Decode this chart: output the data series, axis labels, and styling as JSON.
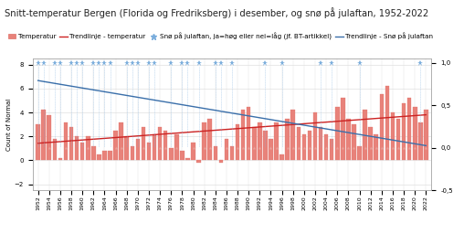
{
  "title": "Snitt-temperatur Bergen (Florida og Fredriksberg) i desember, og snø på julaftan, 1952-2022",
  "ylabel_left": "Count of Normal",
  "years": [
    1952,
    1953,
    1954,
    1955,
    1956,
    1957,
    1958,
    1959,
    1960,
    1961,
    1962,
    1963,
    1964,
    1965,
    1966,
    1967,
    1968,
    1969,
    1970,
    1971,
    1972,
    1973,
    1974,
    1975,
    1976,
    1977,
    1978,
    1979,
    1980,
    1981,
    1982,
    1983,
    1984,
    1985,
    1986,
    1987,
    1988,
    1989,
    1990,
    1991,
    1992,
    1993,
    1994,
    1995,
    1996,
    1997,
    1998,
    1999,
    2000,
    2001,
    2002,
    2003,
    2004,
    2005,
    2006,
    2007,
    2008,
    2009,
    2010,
    2011,
    2012,
    2013,
    2014,
    2015,
    2016,
    2017,
    2018,
    2019,
    2020,
    2021,
    2022
  ],
  "temp": [
    3.0,
    4.2,
    3.8,
    1.8,
    0.2,
    3.2,
    2.8,
    2.0,
    1.5,
    2.0,
    1.2,
    0.5,
    0.8,
    0.8,
    2.5,
    3.2,
    2.0,
    1.2,
    1.8,
    2.8,
    1.5,
    2.2,
    2.8,
    2.5,
    1.0,
    2.2,
    0.8,
    0.2,
    1.5,
    -0.2,
    3.2,
    3.5,
    1.2,
    -0.2,
    1.8,
    1.2,
    3.0,
    4.2,
    4.5,
    2.8,
    3.2,
    2.5,
    1.8,
    3.2,
    0.5,
    3.5,
    4.2,
    2.8,
    2.2,
    2.5,
    4.0,
    2.8,
    2.2,
    1.8,
    4.5,
    5.2,
    3.5,
    3.0,
    1.2,
    4.2,
    2.8,
    2.2,
    5.5,
    6.2,
    4.0,
    3.5,
    4.8,
    5.2,
    4.5,
    3.2,
    4.2
  ],
  "snow": [
    1,
    1,
    0,
    1,
    1,
    0,
    1,
    1,
    1,
    0,
    1,
    1,
    1,
    1,
    0,
    0,
    1,
    1,
    1,
    0,
    1,
    1,
    0,
    0,
    1,
    0,
    1,
    1,
    0,
    1,
    0,
    0,
    1,
    1,
    0,
    1,
    0,
    0,
    0,
    0,
    0,
    1,
    0,
    0,
    1,
    0,
    0,
    0,
    0,
    0,
    0,
    1,
    0,
    1,
    0,
    0,
    0,
    0,
    1,
    0,
    0,
    0,
    0,
    0,
    0,
    0,
    0,
    0,
    0,
    1,
    0
  ],
  "bar_color": "#e8827a",
  "bar_edge_color": "#e07068",
  "trend_temp_color": "#cc2222",
  "snow_marker_color": "#7aaddc",
  "snow_marker_color_no": "#e8b0a8",
  "trend_snow_color": "#3a6faa",
  "background_color": "#ffffff",
  "grid_color": "#e0e0e0",
  "ylim_left": [
    -2.5,
    8.5
  ],
  "ylim_right": [
    -0.5,
    1.05
  ],
  "title_fontsize": 7.2,
  "legend_fontsize": 5.2,
  "tick_fontsize": 5.0,
  "yticks_left": [
    -2,
    0,
    2,
    4,
    6,
    8
  ],
  "yticks_right": [
    -0.5,
    0.0,
    0.5,
    1.0
  ],
  "ytick_labels_right": [
    "-0,5",
    "0,0",
    "0,5",
    "1,0"
  ]
}
